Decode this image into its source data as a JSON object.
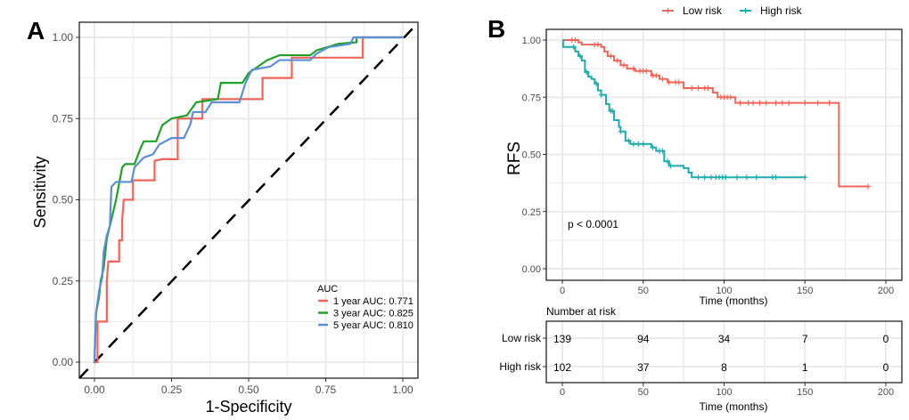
{
  "chart_data": [
    {
      "panel": "A",
      "type": "line",
      "title": "",
      "xlabel": "1-Specificity",
      "ylabel": "Sensitivity",
      "xlim": [
        0,
        1
      ],
      "ylim": [
        0,
        1
      ],
      "xticks": [
        "0.00",
        "0.25",
        "0.50",
        "0.75",
        "1.00"
      ],
      "yticks": [
        "0.00",
        "0.25",
        "0.50",
        "0.75",
        "1.00"
      ],
      "grid": true,
      "legend_title": "AUC",
      "legend_position": "bottom-right",
      "reference_line": "diagonal dashed",
      "series": [
        {
          "name": "1 year AUC: 0.771",
          "color": "#F0655A",
          "points": [
            [
              0,
              0
            ],
            [
              0.01,
              0
            ],
            [
              0.01,
              0.125
            ],
            [
              0.04,
              0.125
            ],
            [
              0.04,
              0.25
            ],
            [
              0.045,
              0.31
            ],
            [
              0.08,
              0.31
            ],
            [
              0.08,
              0.375
            ],
            [
              0.09,
              0.375
            ],
            [
              0.09,
              0.44
            ],
            [
              0.095,
              0.5
            ],
            [
              0.125,
              0.5
            ],
            [
              0.125,
              0.56
            ],
            [
              0.195,
              0.56
            ],
            [
              0.195,
              0.62
            ],
            [
              0.22,
              0.625
            ],
            [
              0.27,
              0.625
            ],
            [
              0.27,
              0.75
            ],
            [
              0.35,
              0.75
            ],
            [
              0.35,
              0.81
            ],
            [
              0.545,
              0.81
            ],
            [
              0.545,
              0.875
            ],
            [
              0.64,
              0.875
            ],
            [
              0.64,
              0.9375
            ],
            [
              0.87,
              0.9375
            ],
            [
              0.87,
              1
            ],
            [
              1,
              1
            ]
          ]
        },
        {
          "name": "3 year AUC: 0.825",
          "color": "#1FA12A",
          "points": [
            [
              0,
              0
            ],
            [
              0.005,
              0.15
            ],
            [
              0.015,
              0.2
            ],
            [
              0.02,
              0.25
            ],
            [
              0.03,
              0.29
            ],
            [
              0.04,
              0.38
            ],
            [
              0.05,
              0.42
            ],
            [
              0.07,
              0.5
            ],
            [
              0.08,
              0.55
            ],
            [
              0.09,
              0.6
            ],
            [
              0.1,
              0.61
            ],
            [
              0.13,
              0.61
            ],
            [
              0.15,
              0.66
            ],
            [
              0.16,
              0.68
            ],
            [
              0.2,
              0.68
            ],
            [
              0.22,
              0.73
            ],
            [
              0.25,
              0.75
            ],
            [
              0.3,
              0.76
            ],
            [
              0.33,
              0.8
            ],
            [
              0.4,
              0.81
            ],
            [
              0.41,
              0.86
            ],
            [
              0.48,
              0.86
            ],
            [
              0.5,
              0.89
            ],
            [
              0.53,
              0.91
            ],
            [
              0.56,
              0.93
            ],
            [
              0.6,
              0.945
            ],
            [
              0.7,
              0.945
            ],
            [
              0.72,
              0.96
            ],
            [
              0.79,
              0.98
            ],
            [
              0.85,
              0.985
            ],
            [
              0.85,
              1
            ],
            [
              1,
              1
            ]
          ]
        },
        {
          "name": "5 year AUC: 0.810",
          "color": "#5B8ED6",
          "points": [
            [
              0,
              0
            ],
            [
              0.005,
              0.15
            ],
            [
              0.015,
              0.22
            ],
            [
              0.025,
              0.26
            ],
            [
              0.03,
              0.34
            ],
            [
              0.04,
              0.39
            ],
            [
              0.05,
              0.42
            ],
            [
              0.055,
              0.54
            ],
            [
              0.07,
              0.555
            ],
            [
              0.12,
              0.555
            ],
            [
              0.13,
              0.6
            ],
            [
              0.16,
              0.63
            ],
            [
              0.19,
              0.64
            ],
            [
              0.21,
              0.67
            ],
            [
              0.25,
              0.69
            ],
            [
              0.29,
              0.69
            ],
            [
              0.31,
              0.73
            ],
            [
              0.32,
              0.77
            ],
            [
              0.36,
              0.77
            ],
            [
              0.38,
              0.8
            ],
            [
              0.47,
              0.8
            ],
            [
              0.49,
              0.86
            ],
            [
              0.51,
              0.9
            ],
            [
              0.57,
              0.91
            ],
            [
              0.6,
              0.93
            ],
            [
              0.7,
              0.93
            ],
            [
              0.72,
              0.95
            ],
            [
              0.76,
              0.97
            ],
            [
              0.83,
              0.98
            ],
            [
              0.84,
              1
            ],
            [
              1,
              1
            ]
          ]
        }
      ]
    },
    {
      "panel": "B",
      "type": "line",
      "subtype": "kaplan-meier",
      "xlabel": "Time (months)",
      "ylabel": "RFS",
      "xlim": [
        0,
        200
      ],
      "ylim": [
        0,
        1
      ],
      "xticks": [
        "0",
        "50",
        "100",
        "150",
        "200"
      ],
      "yticks": [
        "0.00",
        "0.25",
        "0.50",
        "0.75",
        "1.00"
      ],
      "grid": true,
      "legend_position": "top",
      "annotation": "p < 0.0001",
      "series": [
        {
          "name": "Low risk",
          "color": "#F0655A",
          "steps": [
            [
              0,
              1.0
            ],
            [
              10,
              0.99
            ],
            [
              12,
              0.98
            ],
            [
              24,
              0.97
            ],
            [
              26,
              0.95
            ],
            [
              28,
              0.93
            ],
            [
              32,
              0.91
            ],
            [
              36,
              0.89
            ],
            [
              40,
              0.875
            ],
            [
              45,
              0.865
            ],
            [
              55,
              0.845
            ],
            [
              60,
              0.83
            ],
            [
              65,
              0.815
            ],
            [
              75,
              0.79
            ],
            [
              93,
              0.77
            ],
            [
              96,
              0.75
            ],
            [
              107,
              0.725
            ],
            [
              171,
              0.36
            ]
          ],
          "end": 189,
          "censored": [
            6,
            8,
            20,
            22,
            30,
            34,
            38,
            44,
            48,
            50,
            52,
            56,
            58,
            62,
            66,
            70,
            72,
            80,
            84,
            88,
            90,
            98,
            100,
            102,
            104,
            110,
            115,
            118,
            122,
            126,
            132,
            136,
            140,
            150,
            158,
            165,
            189
          ]
        },
        {
          "name": "High risk",
          "color": "#1BADAD",
          "steps": [
            [
              0,
              1.0
            ],
            [
              0.5,
              0.97
            ],
            [
              8,
              0.95
            ],
            [
              10,
              0.93
            ],
            [
              12,
              0.91
            ],
            [
              14,
              0.86
            ],
            [
              16,
              0.84
            ],
            [
              18,
              0.83
            ],
            [
              20,
              0.81
            ],
            [
              22,
              0.78
            ],
            [
              24,
              0.76
            ],
            [
              27,
              0.72
            ],
            [
              29,
              0.69
            ],
            [
              32,
              0.65
            ],
            [
              35,
              0.62
            ],
            [
              36,
              0.6
            ],
            [
              39,
              0.56
            ],
            [
              42,
              0.545
            ],
            [
              55,
              0.53
            ],
            [
              58,
              0.515
            ],
            [
              63,
              0.47
            ],
            [
              66,
              0.45
            ],
            [
              75,
              0.44
            ],
            [
              78,
              0.42
            ],
            [
              80,
              0.4
            ]
          ],
          "end": 150,
          "censored": [
            7,
            11,
            15,
            21,
            24,
            30,
            31,
            36,
            41,
            44,
            47,
            50,
            56,
            60,
            62,
            65,
            67,
            84,
            88,
            92,
            95,
            97,
            99,
            101,
            108,
            114,
            120,
            130,
            132,
            150
          ]
        }
      ],
      "risk_table": {
        "title": "Number at risk",
        "times": [
          0,
          50,
          100,
          150,
          200
        ],
        "rows": [
          {
            "label": "Low risk",
            "values": [
              "139",
              "94",
              "34",
              "7",
              "0"
            ]
          },
          {
            "label": "High risk",
            "values": [
              "102",
              "37",
              "8",
              "1",
              "0"
            ]
          }
        ]
      }
    }
  ],
  "panel_labels": {
    "a": "A",
    "b": "B"
  }
}
